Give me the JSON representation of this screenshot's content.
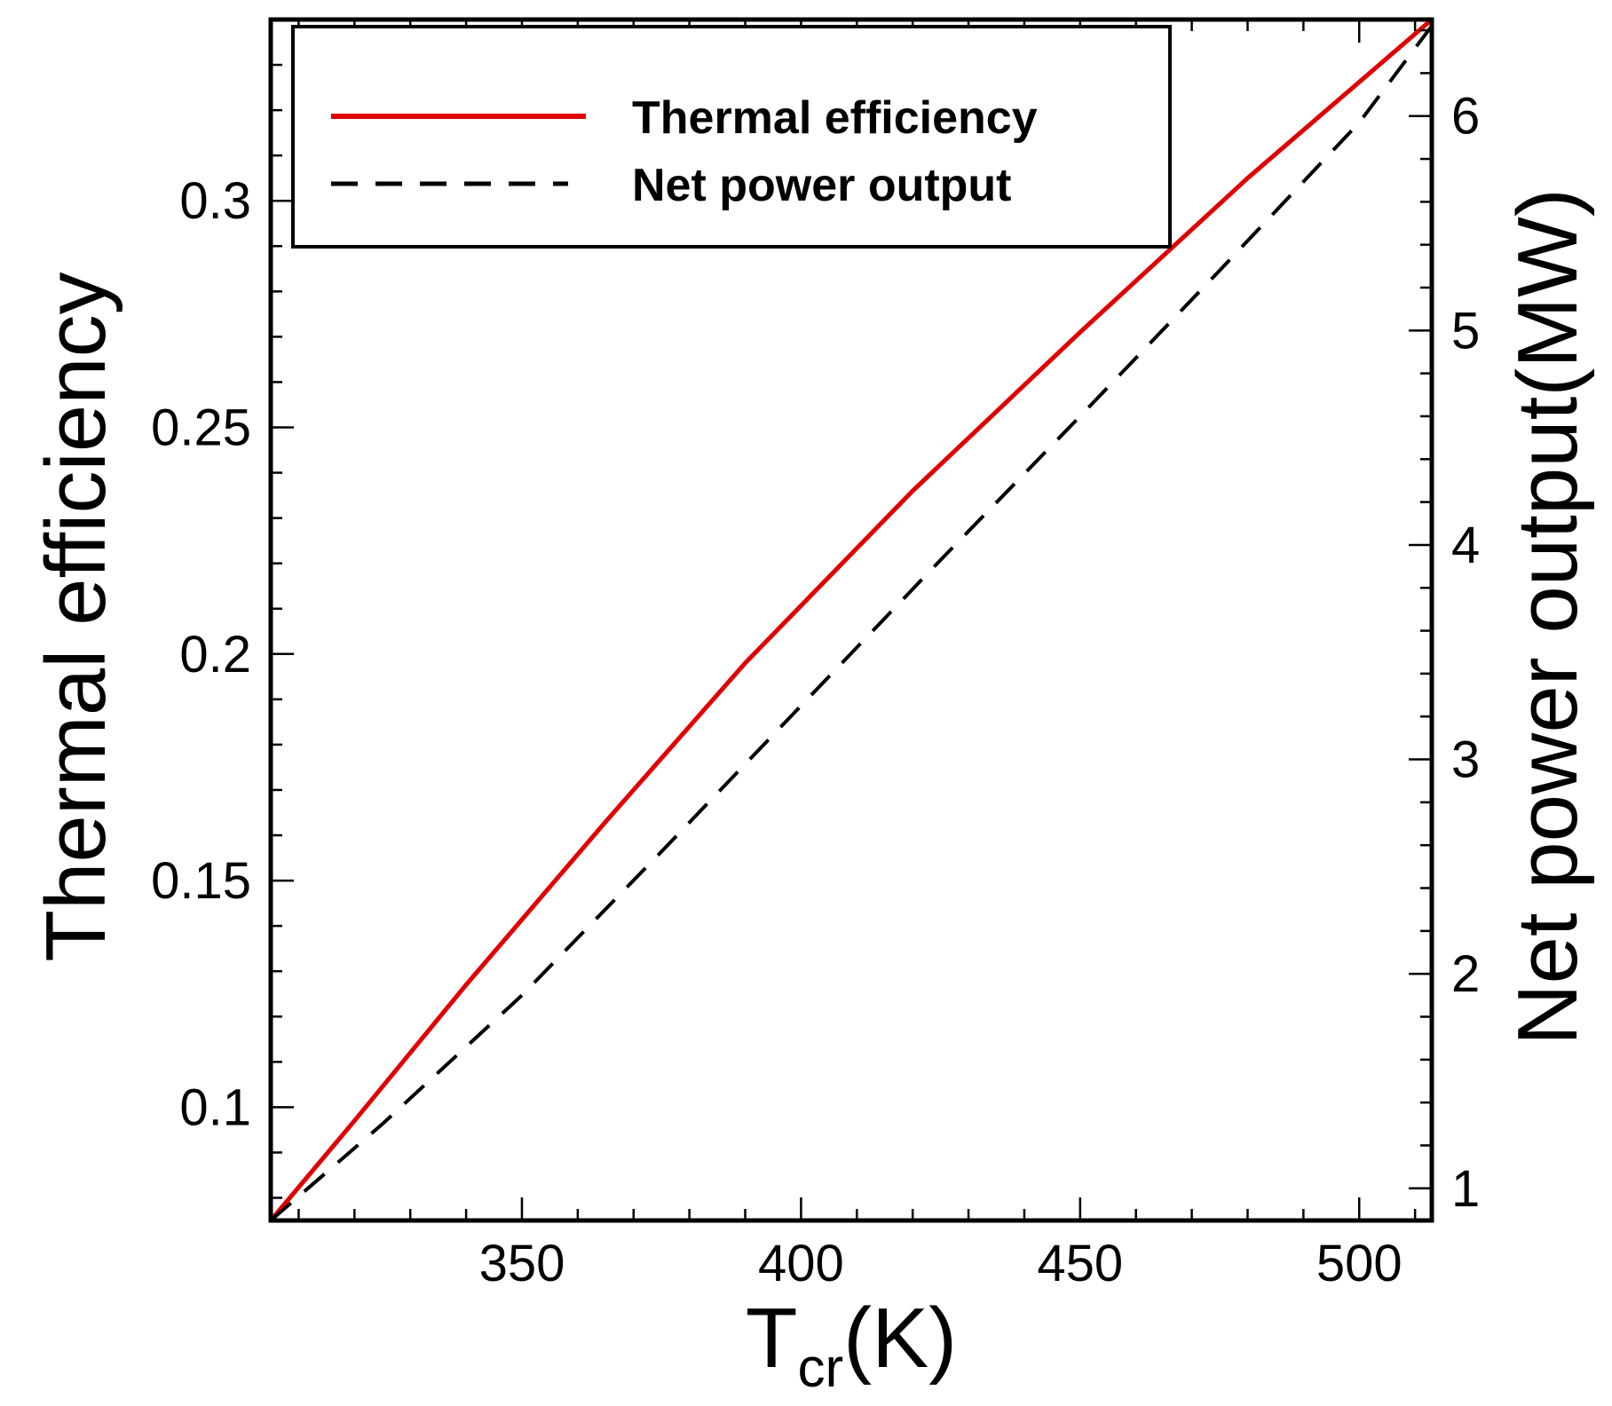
{
  "chart_data": {
    "type": "line",
    "xlabel": {
      "main": "T",
      "sub": "cr",
      "unit": "(K)"
    },
    "ylabel_left": "Thermal efficiency",
    "ylabel_right": "Net power output(MW)",
    "xlim": [
      305,
      513
    ],
    "ylim_left": [
      0.075,
      0.34
    ],
    "ylim_right": [
      0.85,
      6.45
    ],
    "x_ticks": [
      350,
      400,
      450,
      500
    ],
    "x_tick_labels": [
      "350",
      "400",
      "450",
      "500"
    ],
    "y_left_ticks": [
      0.1,
      0.15,
      0.2,
      0.25,
      0.3
    ],
    "y_left_tick_labels": [
      "0.1",
      "0.15",
      "0.2",
      "0.25",
      "0.3"
    ],
    "y_right_ticks": [
      1,
      2,
      3,
      4,
      5,
      6
    ],
    "y_right_tick_labels": [
      "1",
      "2",
      "3",
      "4",
      "5",
      "6"
    ],
    "legend_position": "top-left",
    "series": [
      {
        "name": "Thermal efficiency",
        "axis": "left",
        "color": "#e00000",
        "style": "solid",
        "x": [
          305,
          320,
          340,
          365,
          390,
          420,
          450,
          480,
          513
        ],
        "y": [
          0.075,
          0.097,
          0.127,
          0.163,
          0.198,
          0.236,
          0.271,
          0.305,
          0.34
        ]
      },
      {
        "name": "Net power output",
        "axis": "right",
        "color": "#000000",
        "style": "dashed",
        "x": [
          305,
          325,
          350,
          375,
          400,
          425,
          450,
          475,
          500,
          513
        ],
        "y": [
          0.85,
          1.3,
          1.9,
          2.57,
          3.25,
          3.93,
          4.6,
          5.28,
          5.97,
          6.42
        ]
      }
    ]
  }
}
